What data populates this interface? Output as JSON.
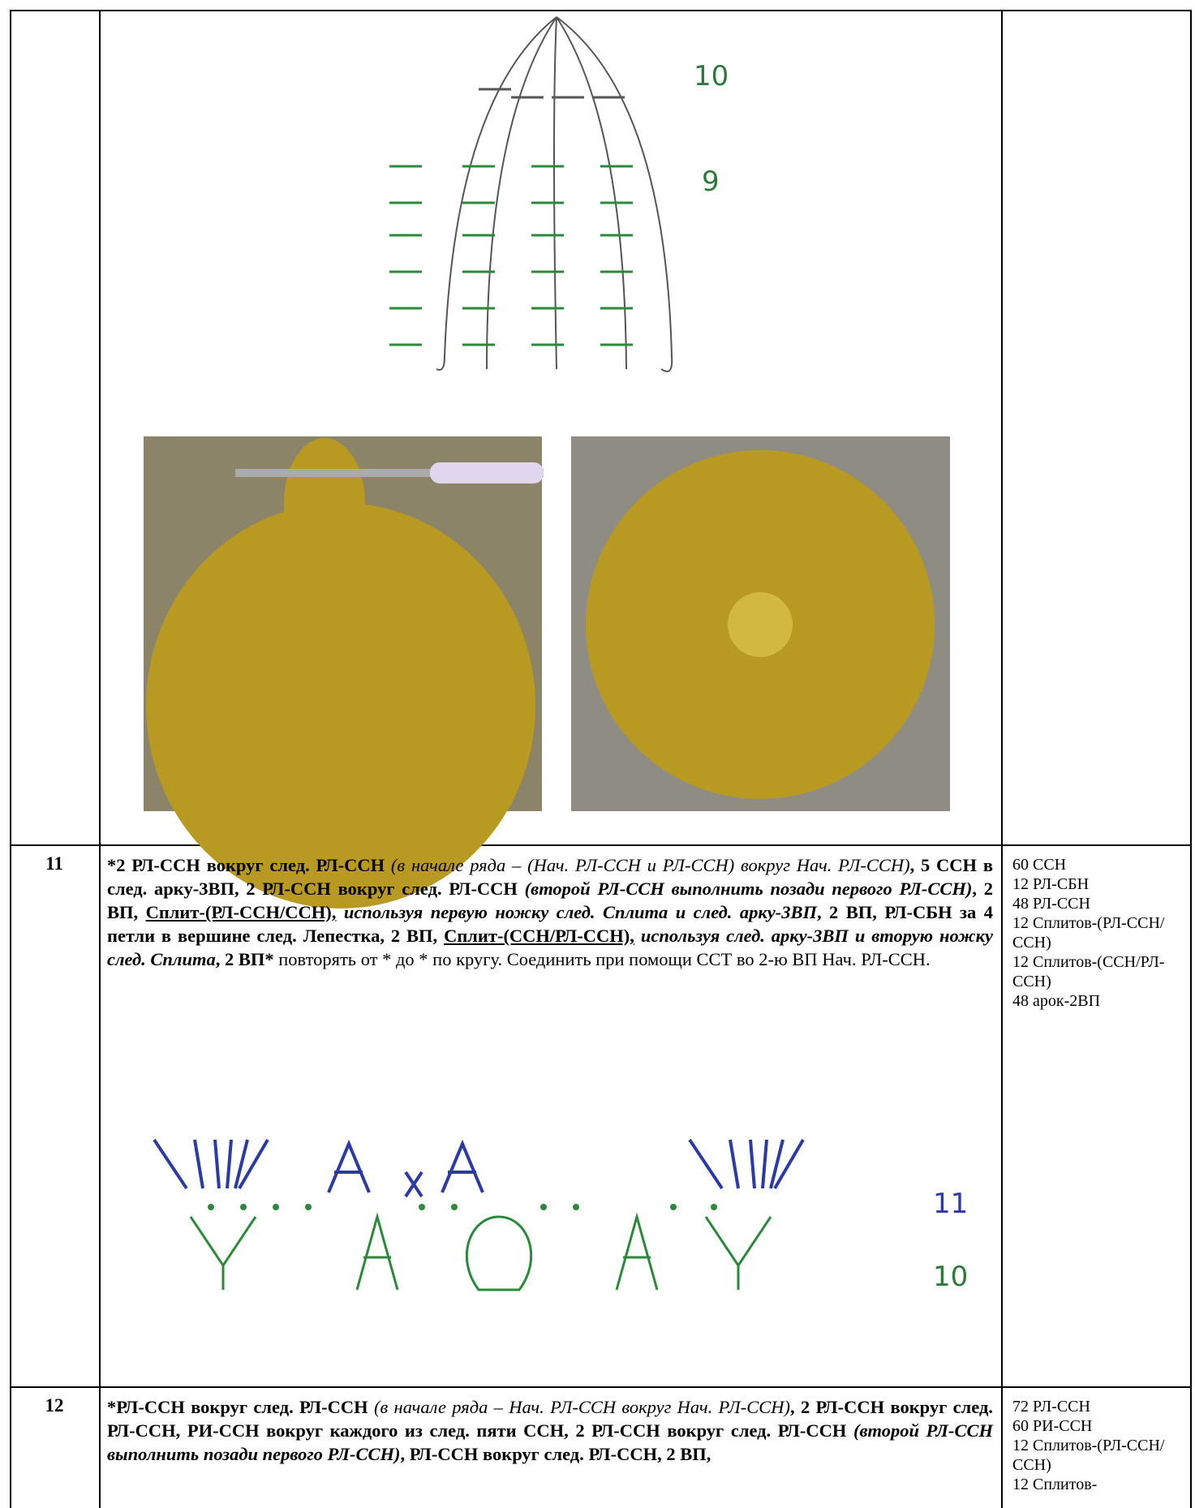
{
  "row_10": {
    "labels": [
      "10",
      "9"
    ]
  },
  "row_11": {
    "number": "11",
    "text": [
      {
        "text": "*2 РЛ-ССН вокруг след. РЛ-ССН ",
        "style": "b"
      },
      {
        "text": "(в начале ряда – (Нач. РЛ-ССН и РЛ-ССН) вокруг Нач. РЛ-ССН)",
        "style": "i"
      },
      {
        "text": ", 5 ССН в след. арку-3ВП, 2 РЛ-ССН вокруг след. РЛ-ССН ",
        "style": "b"
      },
      {
        "text": "(второй РЛ-ССН выполнить позади первого РЛ-ССН)",
        "style": "bi"
      },
      {
        "text": ", 2 ВП, ",
        "style": "b"
      },
      {
        "text": "Сплит-(РЛ-ССН/ССН),",
        "style": "bu"
      },
      {
        "text": " используя первую ножку след. Сплита и след. арку-3ВП",
        "style": "bi"
      },
      {
        "text": ", 2 ВП, РЛ-СБН за 4 петли в вершине след. Лепестка, 2 ВП, ",
        "style": "b"
      },
      {
        "text": "Сплит-(ССН/РЛ-ССН),",
        "style": "bu"
      },
      {
        "text": " используя след. арку-3ВП и вторую ножку след. Сплита",
        "style": "bi"
      },
      {
        "text": ", 2 ВП*",
        "style": "b"
      },
      {
        "text": " повторять от * до * по кругу. Соединить при помощи ССТ во 2-ю ВП Нач. РЛ-ССН.",
        "style": "n"
      }
    ],
    "notes": [
      "60 ССН",
      "12 РЛ-СБН",
      "48 РЛ-ССН",
      "12 Сплитов-(РЛ-ССН/ССН)",
      "12 Сплитов-(ССН/РЛ-ССН)",
      "48 арок-2ВП"
    ],
    "labels": [
      "11",
      "10"
    ]
  },
  "row_12": {
    "number": "12",
    "text": [
      {
        "text": "*РЛ-ССН вокруг след. РЛ-ССН ",
        "style": "b"
      },
      {
        "text": "(в начале ряда – Нач. РЛ-ССН вокруг Нач. РЛ-ССН)",
        "style": "i"
      },
      {
        "text": ", 2 РЛ-ССН вокруг след. РЛ-ССН, РИ-ССН вокруг каждого из след. пяти ССН, 2 РЛ-ССН вокруг след. РЛ-ССН ",
        "style": "b"
      },
      {
        "text": "(второй РЛ-ССН выполнить позади первого РЛ-ССН)",
        "style": "bi"
      },
      {
        "text": ", РЛ-ССН вокруг след. РЛ-ССН, 2 ВП,",
        "style": "b"
      }
    ],
    "notes": [
      "72 РЛ-ССН",
      "60 РИ-ССН",
      "12 Сплитов-(РЛ-ССН/ССН)",
      "12 Сплитов-"
    ]
  }
}
